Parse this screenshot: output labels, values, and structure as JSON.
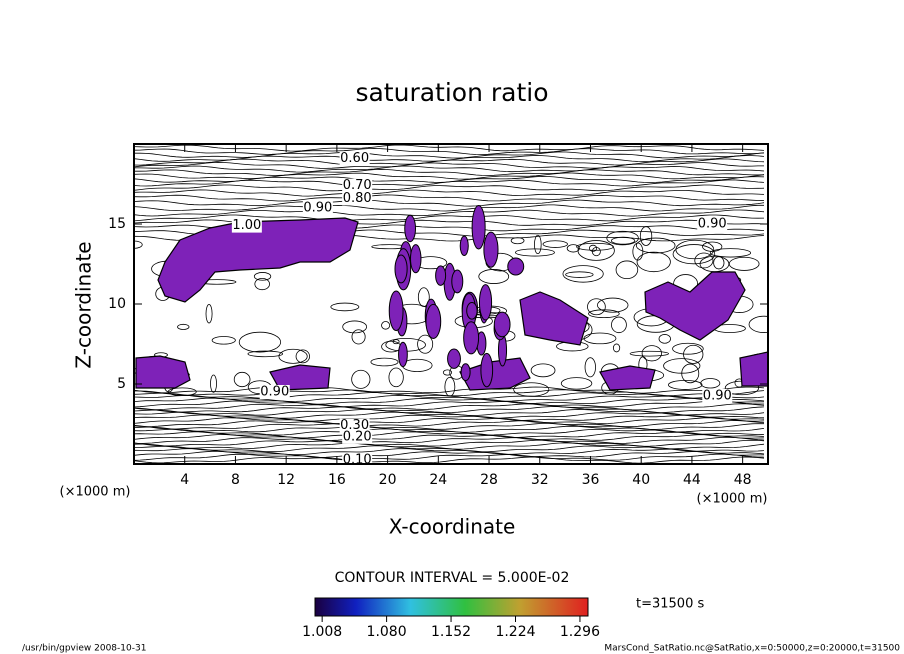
{
  "chart_data": {
    "type": "contour",
    "title": "saturation ratio",
    "x_label": "X-coordinate",
    "y_label": "Z-coordinate",
    "x_unit": "(×1000 m)",
    "y_unit": "(×1000 m)",
    "xlim": [
      0,
      50
    ],
    "ylim": [
      0,
      20
    ],
    "xticks": [
      4,
      8,
      12,
      16,
      20,
      24,
      28,
      32,
      36,
      40,
      44,
      48
    ],
    "yticks": [
      5,
      10,
      15
    ],
    "fill_color": "#7e22b8",
    "contour_labels": [
      {
        "value": 0.6,
        "label": "0.60",
        "x": 17.4,
        "z": 19.1
      },
      {
        "value": 0.7,
        "label": "0.70",
        "x": 17.6,
        "z": 17.4
      },
      {
        "value": 0.8,
        "label": "0.80",
        "x": 17.6,
        "z": 16.6
      },
      {
        "value": 0.9,
        "label": "0.90",
        "x": 14.5,
        "z": 16.0
      },
      {
        "value": 1.0,
        "label": "1.00",
        "x": 8.9,
        "z": 14.9
      },
      {
        "value": 0.9,
        "label": "0.90",
        "x": 45.6,
        "z": 15.0
      },
      {
        "value": 0.9,
        "label": "0.90",
        "x": 11.1,
        "z": 4.5
      },
      {
        "value": 0.9,
        "label": "0.90",
        "x": 46.0,
        "z": 4.25
      },
      {
        "value": 0.3,
        "label": "0.30",
        "x": 17.4,
        "z": 2.4
      },
      {
        "value": 0.2,
        "label": "0.20",
        "x": 17.6,
        "z": 1.7
      },
      {
        "value": 0.1,
        "label": "0.10",
        "x": 17.6,
        "z": 0.25
      }
    ],
    "contour_interval": "CONTOUR INTERVAL = 5.000E-02",
    "colorbar": {
      "clim": [
        1.0,
        1.305
      ],
      "ticks": [
        1.008,
        {
          "value": 1.08,
          "label": "1.080"
        },
        1.152,
        1.224,
        1.296
      ]
    },
    "time_label": "t=31500 s",
    "footer_left": "/usr/bin/gpview   2008-10-31",
    "footer_right": "MarsCond_SatRatio.nc@SatRatio,x=0:50000,z=0:20000,t=31500"
  }
}
